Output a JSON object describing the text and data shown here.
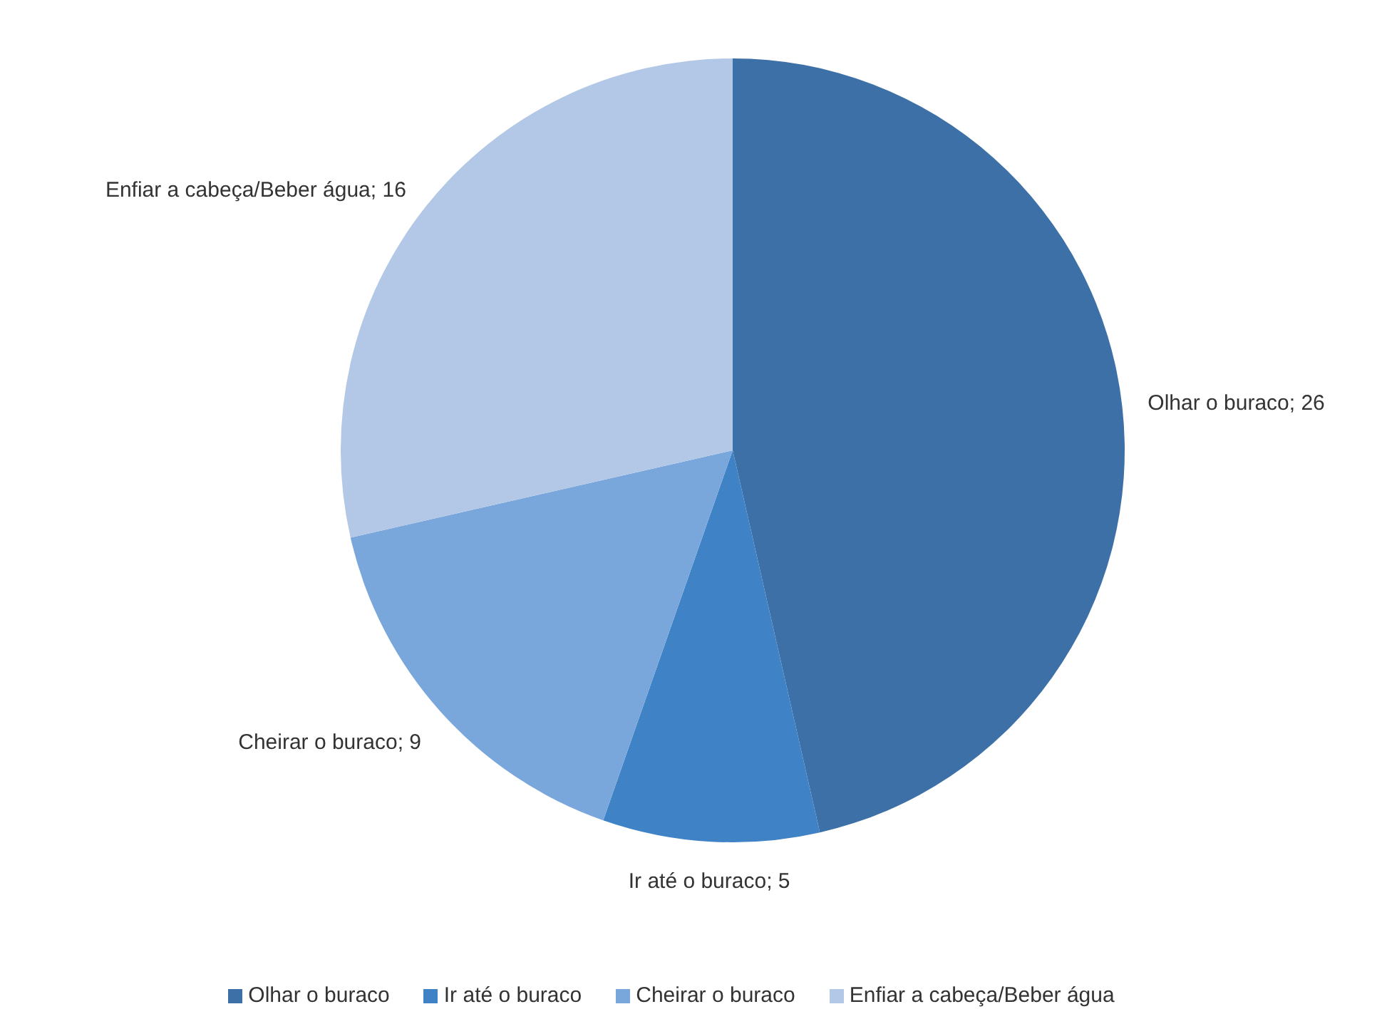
{
  "chart_data": {
    "type": "pie",
    "categories": [
      "Olhar o buraco",
      "Ir até o buraco",
      "Cheirar o buraco",
      "Enfiar a cabeça/Beber água"
    ],
    "values": [
      26,
      5,
      9,
      16
    ],
    "colors": [
      "#3c70a6",
      "#3f83c6",
      "#79a7dc",
      "#b3c8e6"
    ],
    "value_labels": [
      "Olhar o buraco; 26",
      "Ir até o buraco; 5",
      "Cheirar o buraco; 9",
      "Enfiar a cabeça/Beber água; 16"
    ],
    "legend": "bottom"
  }
}
